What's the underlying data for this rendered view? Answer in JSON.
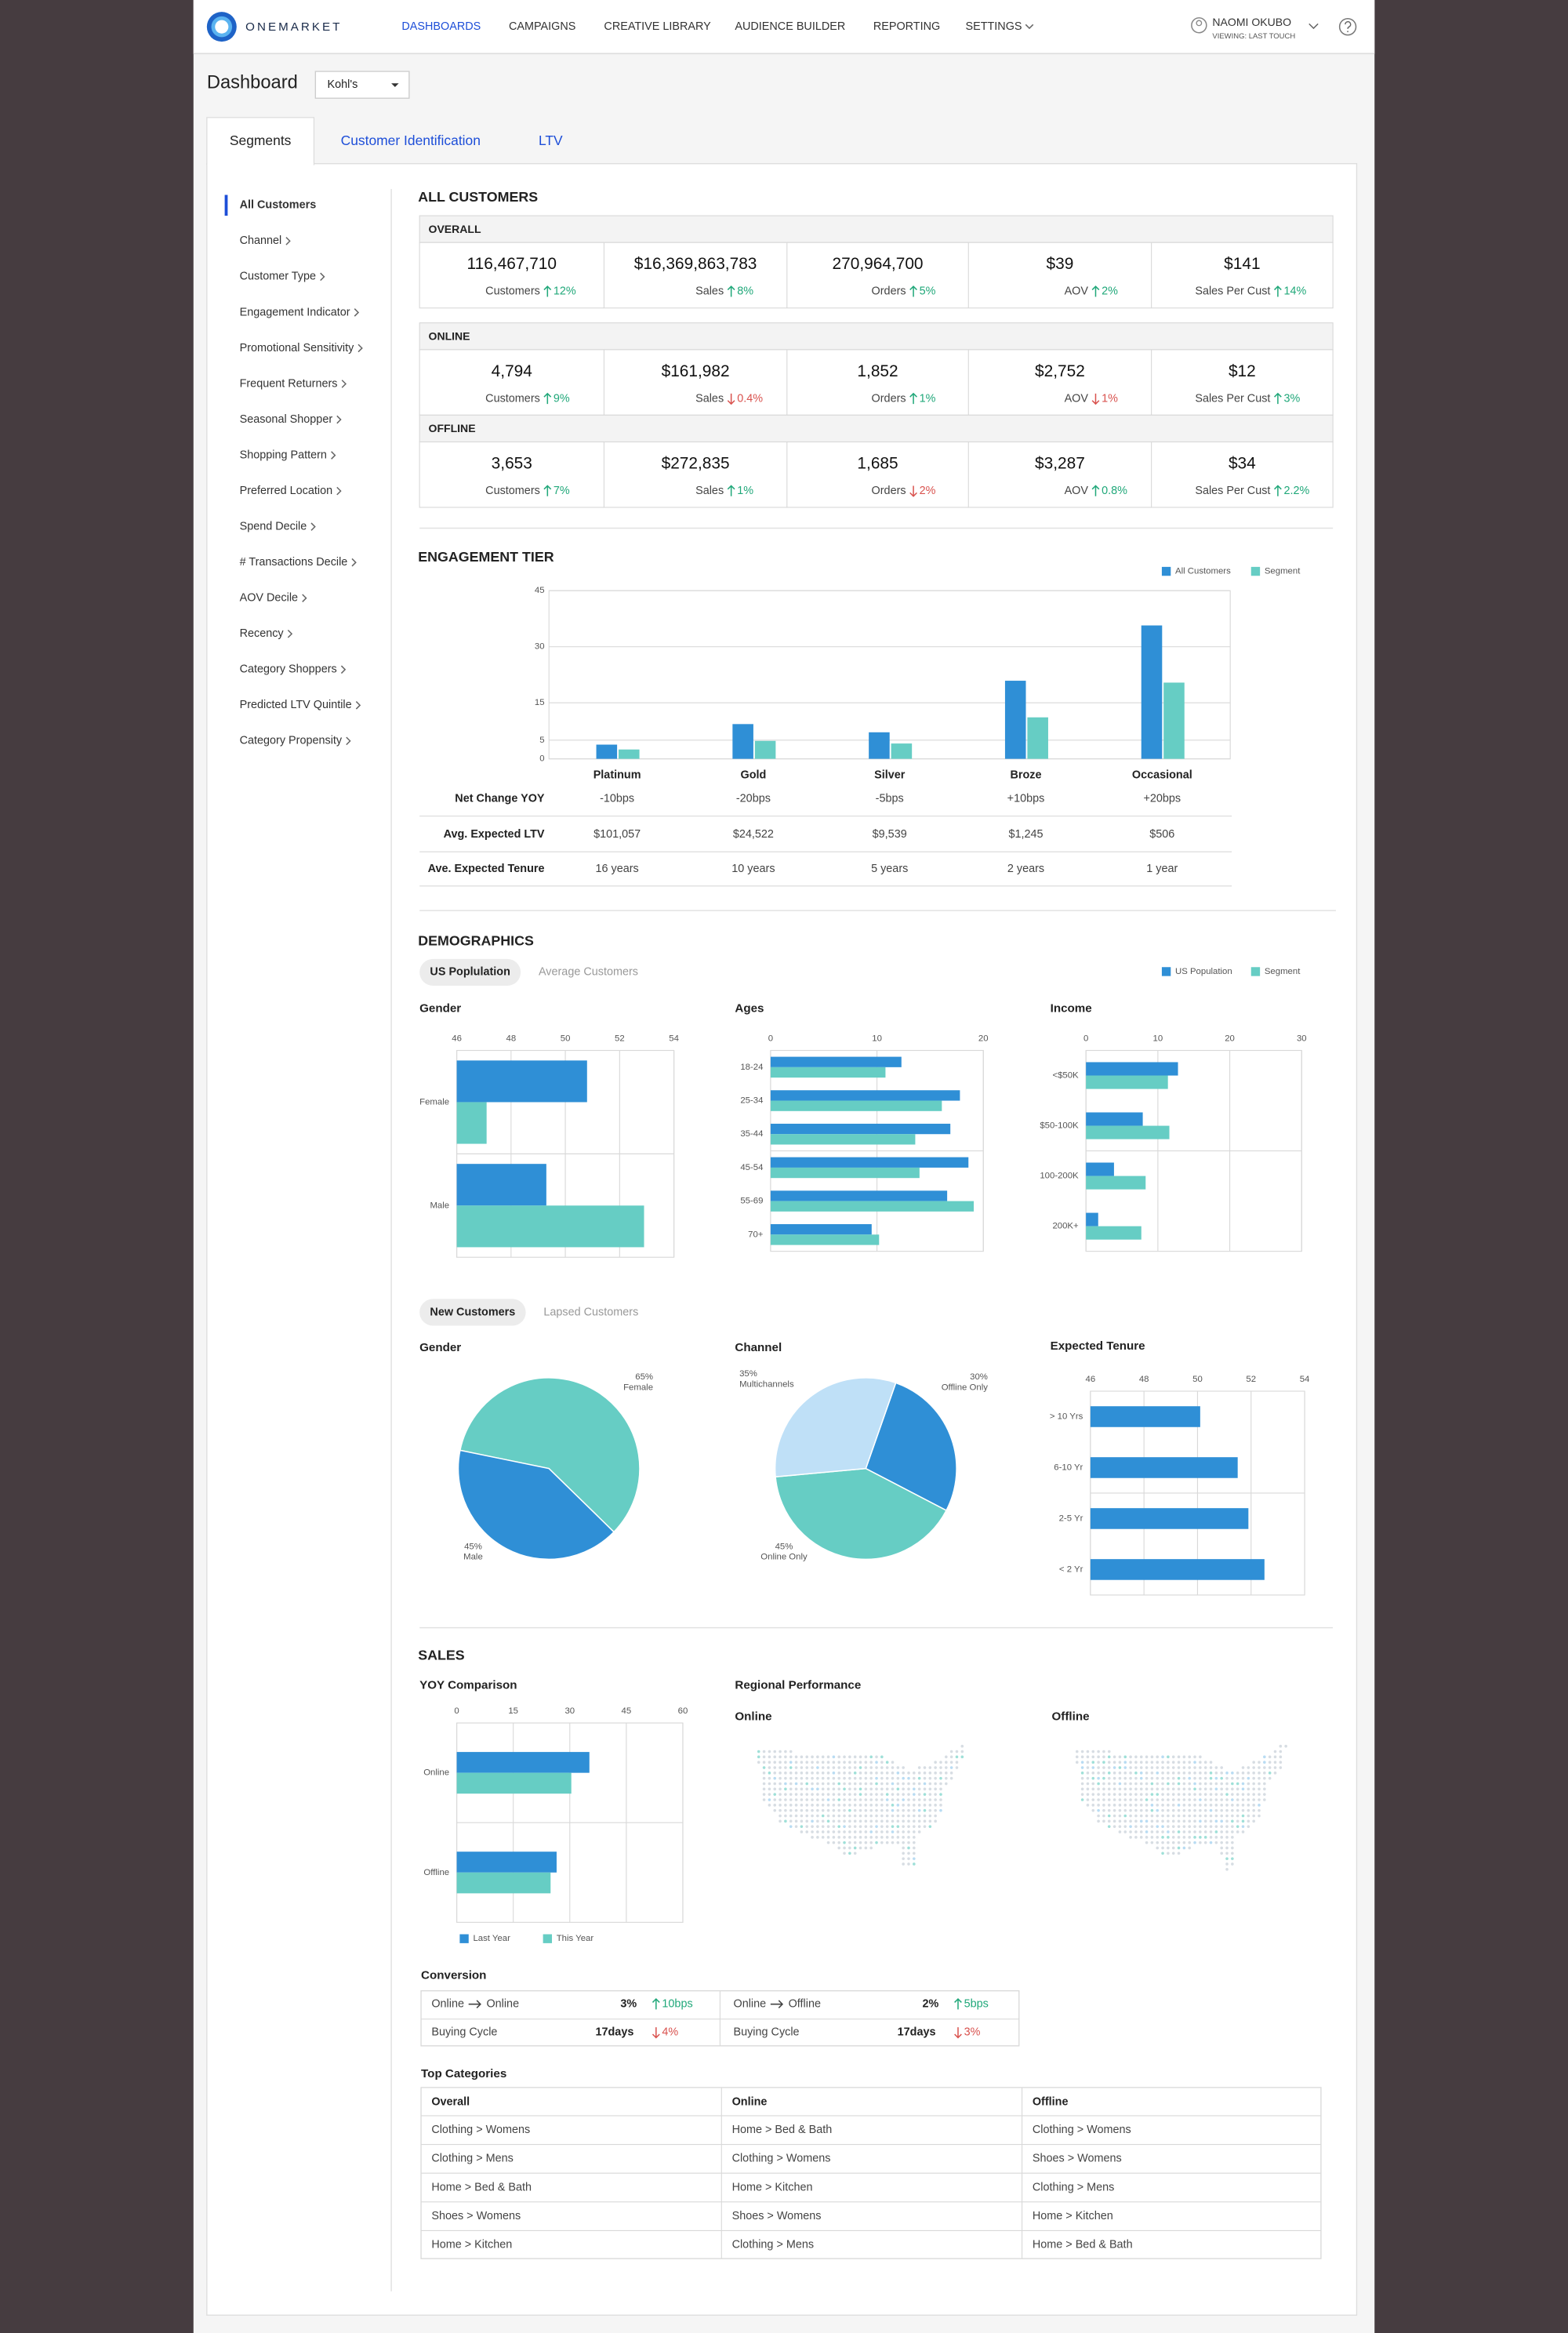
{
  "nav": {
    "brand": "ONEMARKET",
    "items": [
      "DASHBOARDS",
      "CAMPAIGNS",
      "CREATIVE LIBRARY",
      "AUDIENCE BUILDER",
      "REPORTING",
      "SETTINGS"
    ],
    "user": "NAOMI OKUBO",
    "viewing": "VIEWING: LAST TOUCH"
  },
  "header": {
    "title": "Dashboard",
    "account": "Kohl's"
  },
  "tabs": [
    "Segments",
    "Customer Identification",
    "LTV"
  ],
  "sidebar": [
    "All Customers",
    "Channel",
    "Customer Type",
    "Engagement Indicator",
    "Promotional Sensitivity",
    "Frequent Returners",
    "Seasonal Shopper",
    "Shopping Pattern",
    "Preferred Location",
    "Spend Decile",
    "# Transactions Decile",
    "AOV Decile",
    "Recency",
    "Category Shoppers",
    "Predicted LTV Quintile",
    "Category Propensity"
  ],
  "kpi": {
    "title": "ALL CUSTOMERS",
    "groups": [
      {
        "name": "OVERALL",
        "cells": [
          {
            "value": "116,467,710",
            "label": "Customers",
            "change": "12%",
            "trend": "up"
          },
          {
            "value": "$16,369,863,783",
            "label": "Sales",
            "change": "8%",
            "trend": "up"
          },
          {
            "value": "270,964,700",
            "label": "Orders",
            "change": "5%",
            "trend": "up"
          },
          {
            "value": "$39",
            "label": "AOV",
            "change": "2%",
            "trend": "up"
          },
          {
            "value": "$141",
            "label": "Sales Per Cust",
            "change": "14%",
            "trend": "up"
          }
        ]
      },
      {
        "name": "ONLINE",
        "cells": [
          {
            "value": "4,794",
            "label": "Customers",
            "change": "9%",
            "trend": "up"
          },
          {
            "value": "$161,982",
            "label": "Sales",
            "change": "0.4%",
            "trend": "down"
          },
          {
            "value": "1,852",
            "label": "Orders",
            "change": "1%",
            "trend": "up"
          },
          {
            "value": "$2,752",
            "label": "AOV",
            "change": "1%",
            "trend": "down"
          },
          {
            "value": "$12",
            "label": "Sales Per Cust",
            "change": "3%",
            "trend": "up"
          }
        ]
      },
      {
        "name": "OFFLINE",
        "cells": [
          {
            "value": "3,653",
            "label": "Customers",
            "change": "7%",
            "trend": "up"
          },
          {
            "value": "$272,835",
            "label": "Sales",
            "change": "1%",
            "trend": "up"
          },
          {
            "value": "1,685",
            "label": "Orders",
            "change": "2%",
            "trend": "down"
          },
          {
            "value": "$3,287",
            "label": "AOV",
            "change": "0.8%",
            "trend": "up"
          },
          {
            "value": "$34",
            "label": "Sales Per Cust",
            "change": "2.2%",
            "trend": "up"
          }
        ]
      }
    ]
  },
  "chart_data": [
    {
      "type": "bar",
      "title": "ENGAGEMENT TIER",
      "categories": [
        "Platinum",
        "Gold",
        "Silver",
        "Broze",
        "Occasional"
      ],
      "series": [
        {
          "name": "All Customers",
          "color": "#2f8fd6",
          "values": [
            3.8,
            9.3,
            7.1,
            20.9,
            35.7
          ]
        },
        {
          "name": "Segment",
          "color": "#66cdc4",
          "values": [
            2.5,
            4.8,
            4.1,
            11.1,
            20.4
          ]
        }
      ],
      "ylim": [
        0,
        45
      ],
      "yticks": [
        0,
        5,
        15,
        30,
        45
      ],
      "grid": true
    },
    {
      "type": "hbar",
      "title": "Gender",
      "categories": [
        "Female",
        "Male"
      ],
      "series": [
        {
          "name": "US Population",
          "color": "#2f8fd6",
          "values": [
            50.8,
            49.3
          ]
        },
        {
          "name": "Segment",
          "color": "#66cdc4",
          "values": [
            47.1,
            52.9
          ]
        }
      ],
      "xlim": [
        46,
        54
      ],
      "xticks": [
        46,
        48,
        50,
        52,
        54
      ],
      "grid": true
    },
    {
      "type": "hbar",
      "title": "Ages",
      "categories": [
        "18-24",
        "25-34",
        "35-44",
        "45-54",
        "55-69",
        "70+"
      ],
      "series": [
        {
          "color": "#2f8fd6",
          "values": [
            12.3,
            17.8,
            16.9,
            18.6,
            16.6,
            9.5
          ]
        },
        {
          "color": "#66cdc4",
          "values": [
            10.8,
            16.1,
            13.6,
            14.0,
            19.1,
            10.2
          ]
        }
      ],
      "xlim": [
        0,
        20
      ],
      "xticks": [
        0,
        10,
        20
      ],
      "grid": true
    },
    {
      "type": "hbar",
      "title": "Income",
      "categories": [
        "<$50K",
        "$50-100K",
        "100-200K",
        "200K+"
      ],
      "series": [
        {
          "color": "#2f8fd6",
          "values": [
            12.8,
            7.9,
            3.9,
            1.7
          ]
        },
        {
          "color": "#66cdc4",
          "values": [
            11.4,
            11.6,
            8.3,
            7.7
          ]
        }
      ],
      "xlim": [
        0,
        30
      ],
      "xticks": [
        0,
        10,
        20,
        30
      ],
      "grid": true
    },
    {
      "type": "pie",
      "title": "Gender",
      "categories": [
        "Female",
        "Male"
      ],
      "values": [
        65,
        45
      ],
      "value_labels": [
        "65%",
        "45%"
      ],
      "colors": [
        "#66cdc4",
        "#2f8fd6"
      ]
    },
    {
      "type": "pie",
      "title": "Channel",
      "categories": [
        "Offline Only",
        "Online Only",
        "Multichannels"
      ],
      "values": [
        30,
        45,
        35
      ],
      "value_labels": [
        "30%",
        "45%",
        "35%"
      ],
      "colors": [
        "#2f8fd6",
        "#66cdc4",
        "#bfe0f7"
      ]
    },
    {
      "type": "hbar",
      "title": "Expected Tenure",
      "categories": [
        "> 10 Yrs",
        "6-10 Yr",
        "2-5 Yr",
        "< 2 Yr"
      ],
      "series": [
        {
          "color": "#2f8fd6",
          "values": [
            50.1,
            51.5,
            51.9,
            52.5
          ]
        }
      ],
      "xlim": [
        46,
        54
      ],
      "xticks": [
        46,
        48,
        50,
        52,
        54
      ],
      "grid": true
    },
    {
      "type": "hbar",
      "title": "YOY Comparison",
      "categories": [
        "Online",
        "Offline"
      ],
      "series": [
        {
          "name": "Last Year",
          "color": "#2f8fd6",
          "values": [
            35.2,
            26.5
          ]
        },
        {
          "name": "This Year",
          "color": "#66cdc4",
          "values": [
            30.4,
            24.9
          ]
        }
      ],
      "xlim": [
        0,
        60
      ],
      "xticks": [
        0,
        15,
        30,
        45,
        60
      ],
      "grid": true
    }
  ],
  "engagement_table": {
    "rows": [
      {
        "label": "Net Change YOY",
        "values": [
          "-10bps",
          "-20bps",
          "-5bps",
          "+10bps",
          "+20bps"
        ]
      },
      {
        "label": "Avg. Expected LTV",
        "values": [
          "$101,057",
          "$24,522",
          "$9,539",
          "$1,245",
          "$506"
        ]
      },
      {
        "label": "Ave. Expected Tenure",
        "values": [
          "16 years",
          "10 years",
          "5 years",
          "2 years",
          "1 year"
        ]
      }
    ]
  },
  "demographics": {
    "title": "DEMOGRAPHICS",
    "toggle_1": [
      "US Poplulation",
      "Average Customers"
    ],
    "toggle_2": [
      "New Customers",
      "Lapsed Customers"
    ]
  },
  "sales": {
    "title": "SALES",
    "regional": {
      "title": "Regional Performance",
      "maps": [
        "Online",
        "Offline"
      ]
    },
    "conversion": {
      "title": "Conversion",
      "items": [
        {
          "from": "Online",
          "to": "Online",
          "rate": "3%",
          "rate_change": "10bps",
          "rate_trend": "up",
          "cycle_label": "Buying Cycle",
          "cycle": "17days",
          "cycle_change": "4%",
          "cycle_trend": "down"
        },
        {
          "from": "Online",
          "to": "Offline",
          "rate": "2%",
          "rate_change": "5bps",
          "rate_trend": "up",
          "cycle_label": "Buying Cycle",
          "cycle": "17days",
          "cycle_change": "3%",
          "cycle_trend": "down"
        }
      ]
    },
    "top_categories": {
      "title": "Top Categories",
      "columns": [
        "Overall",
        "Online",
        "Offline"
      ],
      "rows": [
        [
          "Clothing > Womens",
          "Home > Bed & Bath",
          "Clothing > Womens"
        ],
        [
          "Clothing > Mens",
          "Clothing > Womens",
          "Shoes > Womens"
        ],
        [
          "Home > Bed & Bath",
          "Home > Kitchen",
          "Clothing > Mens"
        ],
        [
          "Shoes > Womens",
          "Shoes > Womens",
          "Home > Kitchen"
        ],
        [
          "Home > Kitchen",
          "Clothing > Mens",
          "Home > Bed & Bath"
        ]
      ]
    }
  }
}
